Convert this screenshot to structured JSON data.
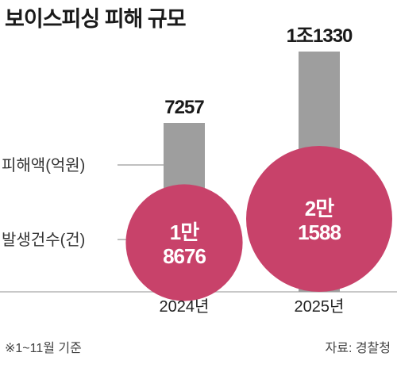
{
  "title": "보이스피싱 피해 규모",
  "note": "※1~11월 기준",
  "source": "자료: 경찰청",
  "colors": {
    "bar": "#9e9e9e",
    "bubble": "#c8426a",
    "guide": "#9a9a9a",
    "baseline": "#c8c8c8"
  },
  "chart_data": {
    "type": "bar",
    "categories": [
      "2024년",
      "2025년"
    ],
    "series": [
      {
        "name": "피해액(억원)",
        "encoding": "bar",
        "values": [
          7257,
          11330
        ],
        "value_labels": [
          "7257",
          "1조1330"
        ]
      },
      {
        "name": "발생건수(건)",
        "encoding": "bubble",
        "values": [
          18676,
          21588
        ],
        "value_labels": [
          [
            "1만",
            "8676"
          ],
          [
            "2만",
            "1588"
          ]
        ]
      }
    ]
  }
}
